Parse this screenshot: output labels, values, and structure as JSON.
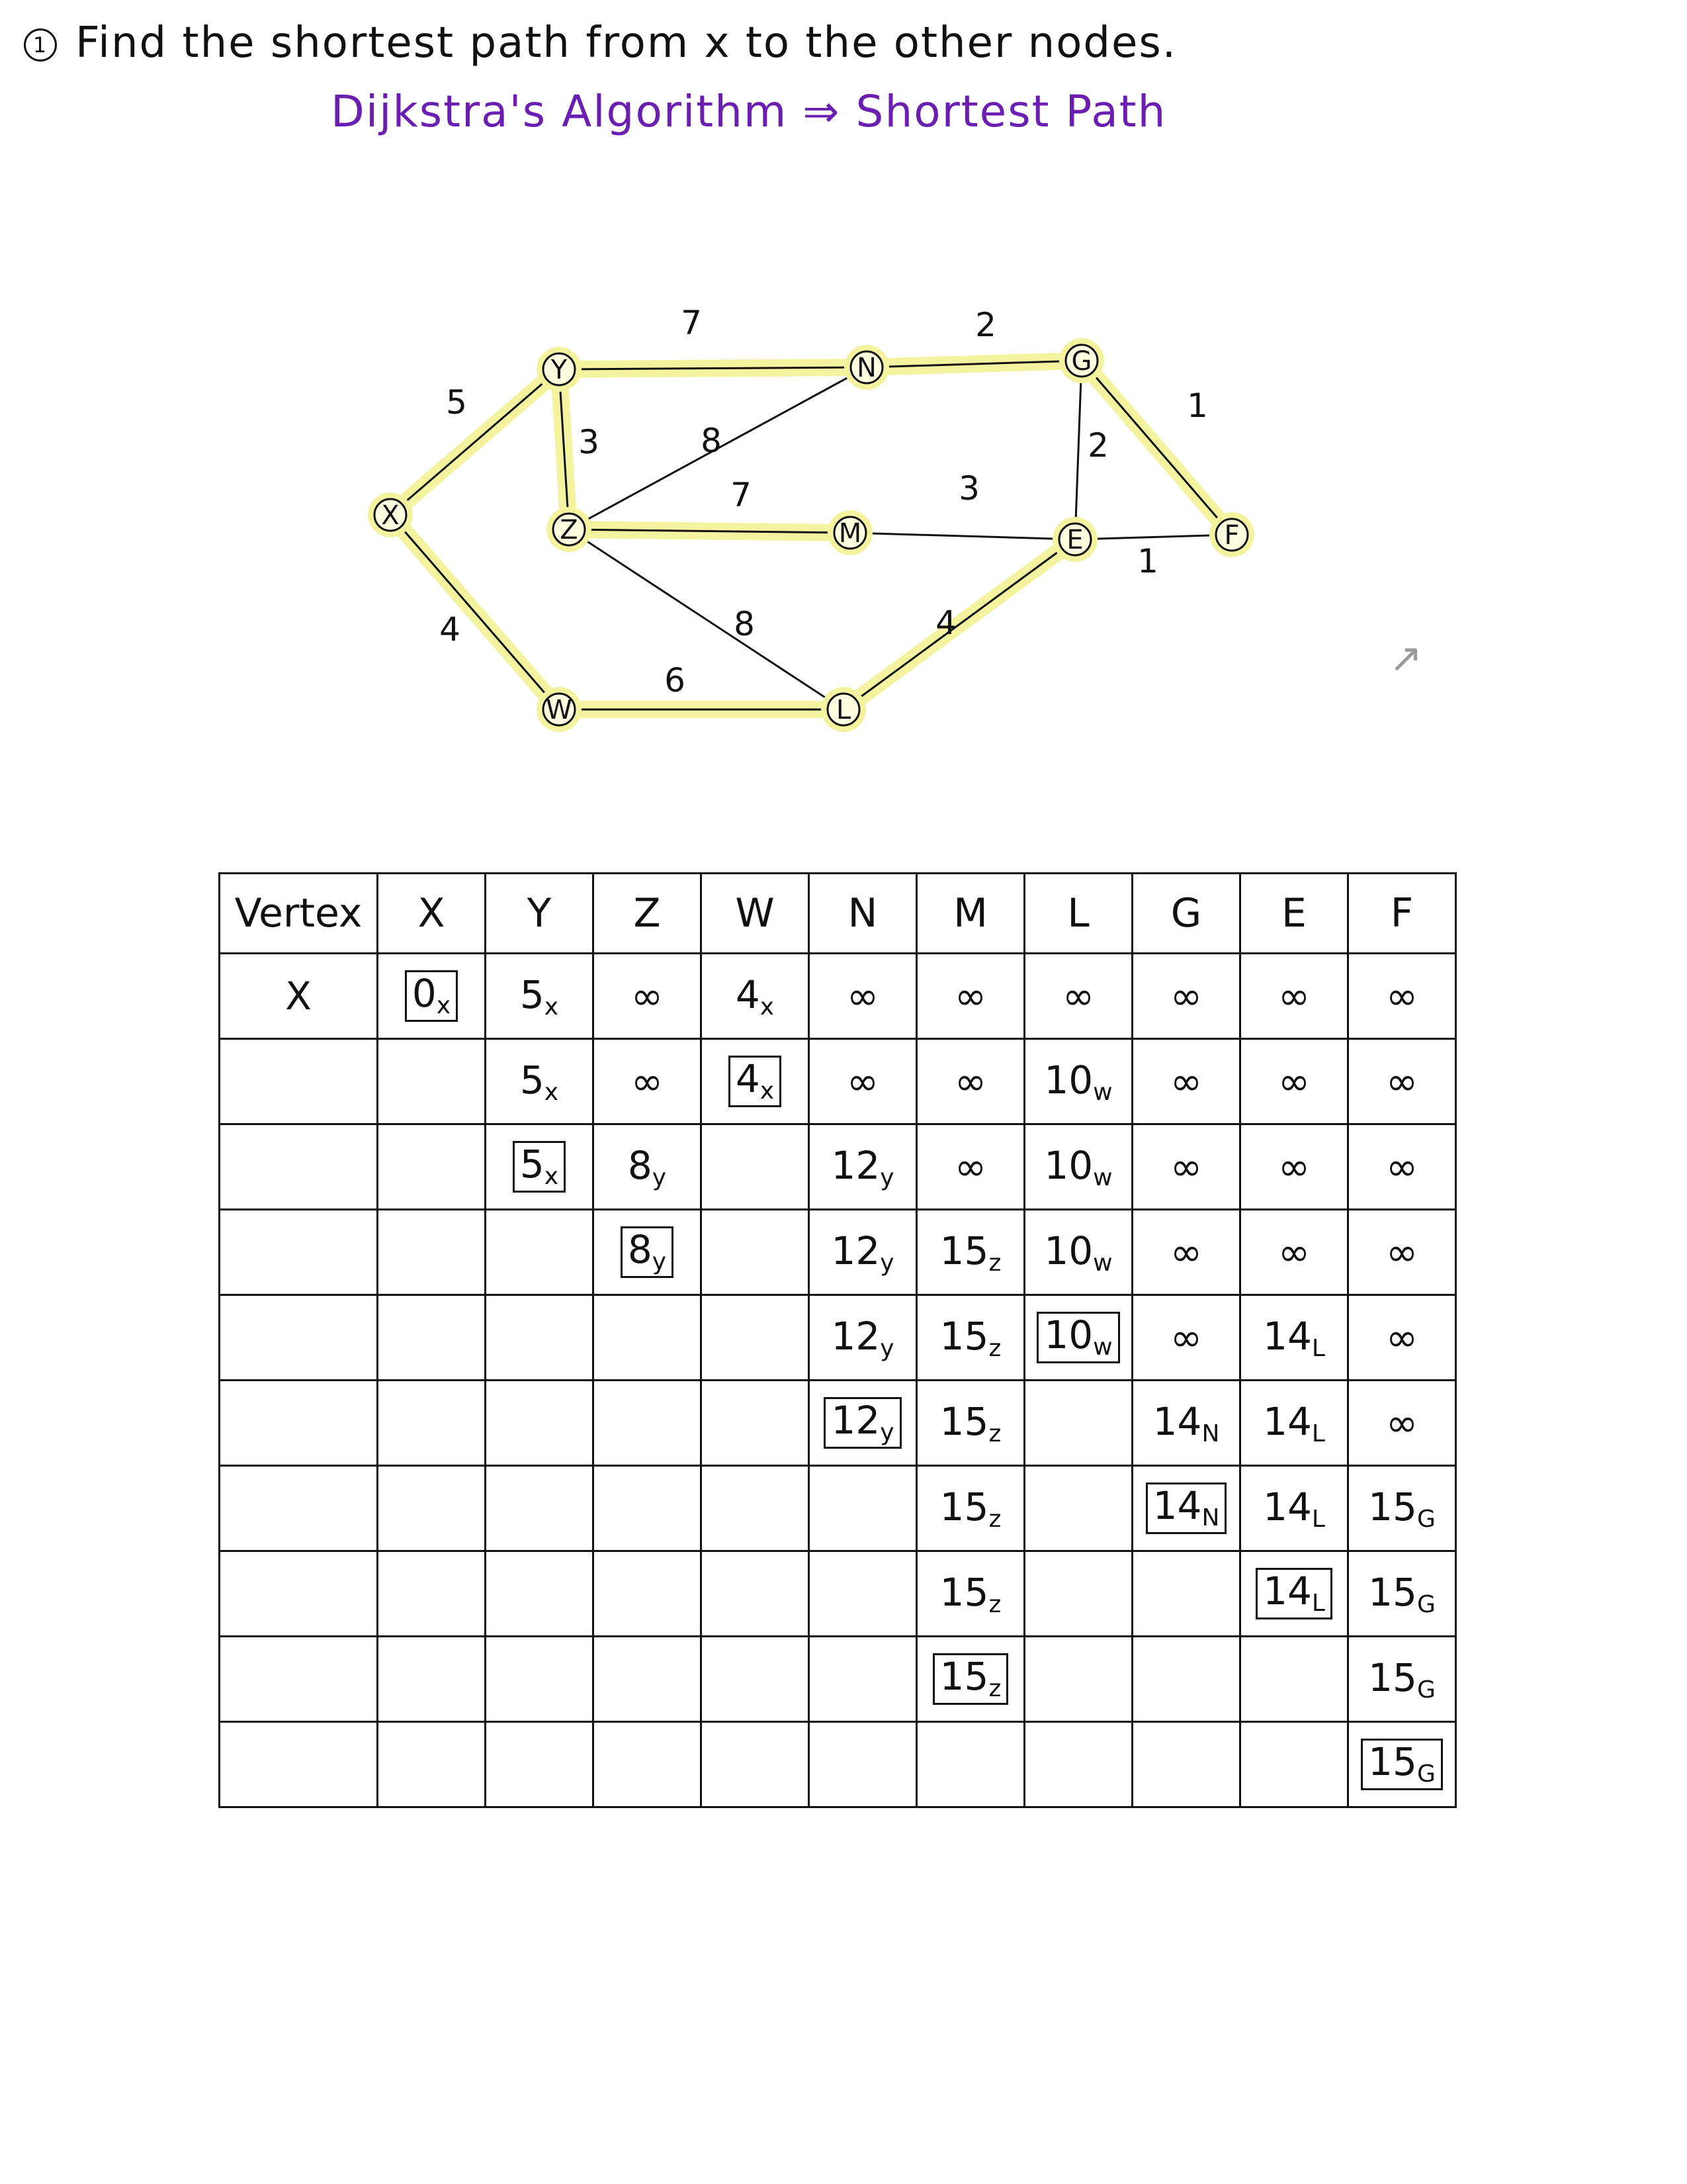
{
  "heading": {
    "number": "1",
    "title": "Find the shortest path from x to the other nodes.",
    "subtitle": "Dijkstra's Algorithm ⇒ Shortest Path"
  },
  "graph": {
    "highlight_color": "#f4f3a0",
    "nodes": [
      {
        "id": "X",
        "label": "X"
      },
      {
        "id": "Y",
        "label": "Y"
      },
      {
        "id": "Z",
        "label": "Z"
      },
      {
        "id": "W",
        "label": "W"
      },
      {
        "id": "N",
        "label": "N"
      },
      {
        "id": "M",
        "label": "M"
      },
      {
        "id": "L",
        "label": "L"
      },
      {
        "id": "G",
        "label": "G"
      },
      {
        "id": "E",
        "label": "E"
      },
      {
        "id": "F",
        "label": "F"
      }
    ],
    "edges": [
      {
        "from": "X",
        "to": "Y",
        "weight": "5",
        "tree": true
      },
      {
        "from": "X",
        "to": "W",
        "weight": "4",
        "tree": true
      },
      {
        "from": "Y",
        "to": "Z",
        "weight": "3",
        "tree": true
      },
      {
        "from": "Y",
        "to": "N",
        "weight": "7",
        "tree": true
      },
      {
        "from": "Z",
        "to": "N",
        "weight": "8",
        "tree": false
      },
      {
        "from": "Z",
        "to": "M",
        "weight": "7",
        "tree": true
      },
      {
        "from": "Z",
        "to": "L",
        "weight": "8",
        "tree": false
      },
      {
        "from": "W",
        "to": "L",
        "weight": "6",
        "tree": true
      },
      {
        "from": "N",
        "to": "G",
        "weight": "2",
        "tree": true
      },
      {
        "from": "M",
        "to": "E",
        "weight": "3",
        "tree": false
      },
      {
        "from": "L",
        "to": "E",
        "weight": "4",
        "tree": true
      },
      {
        "from": "G",
        "to": "E",
        "weight": "2",
        "tree": false
      },
      {
        "from": "G",
        "to": "F",
        "weight": "1",
        "tree": true
      },
      {
        "from": "E",
        "to": "F",
        "weight": "1",
        "tree": false
      }
    ]
  },
  "table": {
    "header_first": "Vertex",
    "columns": [
      "X",
      "Y",
      "Z",
      "W",
      "N",
      "M",
      "L",
      "G",
      "E",
      "F"
    ],
    "rows": [
      {
        "vertex": "X",
        "cells": [
          {
            "v": "0",
            "s": "x",
            "box": true
          },
          {
            "v": "5",
            "s": "x"
          },
          {
            "v": "∞"
          },
          {
            "v": "4",
            "s": "x"
          },
          {
            "v": "∞"
          },
          {
            "v": "∞"
          },
          {
            "v": "∞"
          },
          {
            "v": "∞"
          },
          {
            "v": "∞"
          },
          {
            "v": "∞"
          }
        ]
      },
      {
        "vertex": "",
        "cells": [
          {
            "v": ""
          },
          {
            "v": "5",
            "s": "x"
          },
          {
            "v": "∞"
          },
          {
            "v": "4",
            "s": "x",
            "box": true
          },
          {
            "v": "∞"
          },
          {
            "v": "∞"
          },
          {
            "v": "10",
            "s": "w"
          },
          {
            "v": "∞"
          },
          {
            "v": "∞"
          },
          {
            "v": "∞"
          }
        ]
      },
      {
        "vertex": "",
        "cells": [
          {
            "v": ""
          },
          {
            "v": "5",
            "s": "x",
            "box": true
          },
          {
            "v": "8",
            "s": "y"
          },
          {
            "v": ""
          },
          {
            "v": "12",
            "s": "y"
          },
          {
            "v": "∞"
          },
          {
            "v": "10",
            "s": "w"
          },
          {
            "v": "∞"
          },
          {
            "v": "∞"
          },
          {
            "v": "∞"
          }
        ]
      },
      {
        "vertex": "",
        "cells": [
          {
            "v": ""
          },
          {
            "v": ""
          },
          {
            "v": "8",
            "s": "y",
            "box": true
          },
          {
            "v": ""
          },
          {
            "v": "12",
            "s": "y"
          },
          {
            "v": "15",
            "s": "z"
          },
          {
            "v": "10",
            "s": "w"
          },
          {
            "v": "∞"
          },
          {
            "v": "∞"
          },
          {
            "v": "∞"
          }
        ]
      },
      {
        "vertex": "",
        "cells": [
          {
            "v": ""
          },
          {
            "v": ""
          },
          {
            "v": ""
          },
          {
            "v": ""
          },
          {
            "v": "12",
            "s": "y"
          },
          {
            "v": "15",
            "s": "z"
          },
          {
            "v": "10",
            "s": "w",
            "box": true
          },
          {
            "v": "∞"
          },
          {
            "v": "14",
            "s": "L"
          },
          {
            "v": "∞"
          }
        ]
      },
      {
        "vertex": "",
        "cells": [
          {
            "v": ""
          },
          {
            "v": ""
          },
          {
            "v": ""
          },
          {
            "v": ""
          },
          {
            "v": "12",
            "s": "y",
            "box": true
          },
          {
            "v": "15",
            "s": "z"
          },
          {
            "v": ""
          },
          {
            "v": "14",
            "s": "N"
          },
          {
            "v": "14",
            "s": "L"
          },
          {
            "v": "∞"
          }
        ]
      },
      {
        "vertex": "",
        "cells": [
          {
            "v": ""
          },
          {
            "v": ""
          },
          {
            "v": ""
          },
          {
            "v": ""
          },
          {
            "v": ""
          },
          {
            "v": "15",
            "s": "z"
          },
          {
            "v": ""
          },
          {
            "v": "14",
            "s": "N",
            "box": true
          },
          {
            "v": "14",
            "s": "L"
          },
          {
            "v": "15",
            "s": "G"
          }
        ]
      },
      {
        "vertex": "",
        "cells": [
          {
            "v": ""
          },
          {
            "v": ""
          },
          {
            "v": ""
          },
          {
            "v": ""
          },
          {
            "v": ""
          },
          {
            "v": "15",
            "s": "z"
          },
          {
            "v": ""
          },
          {
            "v": ""
          },
          {
            "v": "14",
            "s": "L",
            "box": true
          },
          {
            "v": "15",
            "s": "G"
          }
        ]
      },
      {
        "vertex": "",
        "cells": [
          {
            "v": ""
          },
          {
            "v": ""
          },
          {
            "v": ""
          },
          {
            "v": ""
          },
          {
            "v": ""
          },
          {
            "v": "15",
            "s": "z",
            "box": true
          },
          {
            "v": ""
          },
          {
            "v": ""
          },
          {
            "v": ""
          },
          {
            "v": "15",
            "s": "G"
          }
        ]
      },
      {
        "vertex": "",
        "cells": [
          {
            "v": ""
          },
          {
            "v": ""
          },
          {
            "v": ""
          },
          {
            "v": ""
          },
          {
            "v": ""
          },
          {
            "v": ""
          },
          {
            "v": ""
          },
          {
            "v": ""
          },
          {
            "v": ""
          },
          {
            "v": "15",
            "s": "G",
            "box": true
          }
        ]
      }
    ]
  }
}
